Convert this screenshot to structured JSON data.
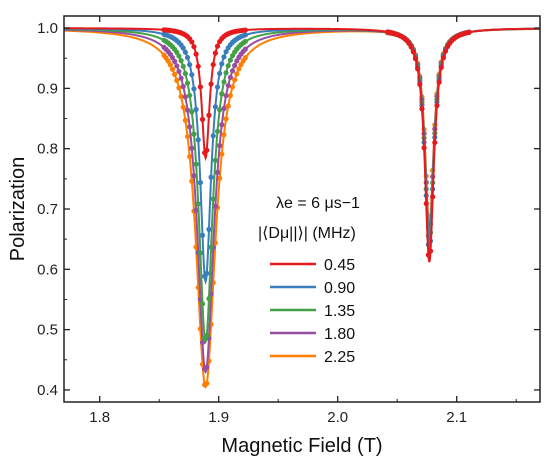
{
  "chart_data": {
    "type": "line",
    "xlabel": "Magnetic Field (T)",
    "ylabel": "Polarization",
    "xlim": [
      1.77,
      2.17
    ],
    "ylim": [
      0.38,
      1.02
    ],
    "xticks": [
      1.8,
      1.9,
      2.0,
      2.1
    ],
    "xtick_labels": [
      "1.8",
      "1.9",
      "2.0",
      "2.1"
    ],
    "yticks": [
      0.4,
      0.5,
      0.6,
      0.7,
      0.8,
      0.9,
      1.0
    ],
    "ytick_labels": [
      "0.4",
      "0.5",
      "0.6",
      "0.7",
      "0.8",
      "0.9",
      "1.0"
    ],
    "grid": false,
    "legend_position": "center",
    "legend_title_line1": "λe = 6 μs−1",
    "legend_title_line2": "|⟨Dμ||⟩| (MHz)",
    "dip_centers": [
      1.889,
      2.077
    ],
    "series": [
      {
        "name": "0.45",
        "color": "#e41a1c",
        "dip1_min": 0.785,
        "dip1_hwhm": 0.004,
        "dip2_min": 0.612,
        "dip2_hwhm": 0.0045
      },
      {
        "name": "0.90",
        "color": "#3a7dbd",
        "dip1_min": 0.58,
        "dip1_hwhm": 0.0055,
        "dip2_min": 0.63,
        "dip2_hwhm": 0.0045
      },
      {
        "name": "1.35",
        "color": "#43a047",
        "dip1_min": 0.48,
        "dip1_hwhm": 0.007,
        "dip2_min": 0.645,
        "dip2_hwhm": 0.0045
      },
      {
        "name": "1.80",
        "color": "#984ea3",
        "dip1_min": 0.43,
        "dip1_hwhm": 0.0085,
        "dip2_min": 0.66,
        "dip2_hwhm": 0.0045
      },
      {
        "name": "2.25",
        "color": "#ff7f00",
        "dip1_min": 0.405,
        "dip1_hwhm": 0.01,
        "dip2_min": 0.675,
        "dip2_hwhm": 0.0045
      }
    ]
  }
}
